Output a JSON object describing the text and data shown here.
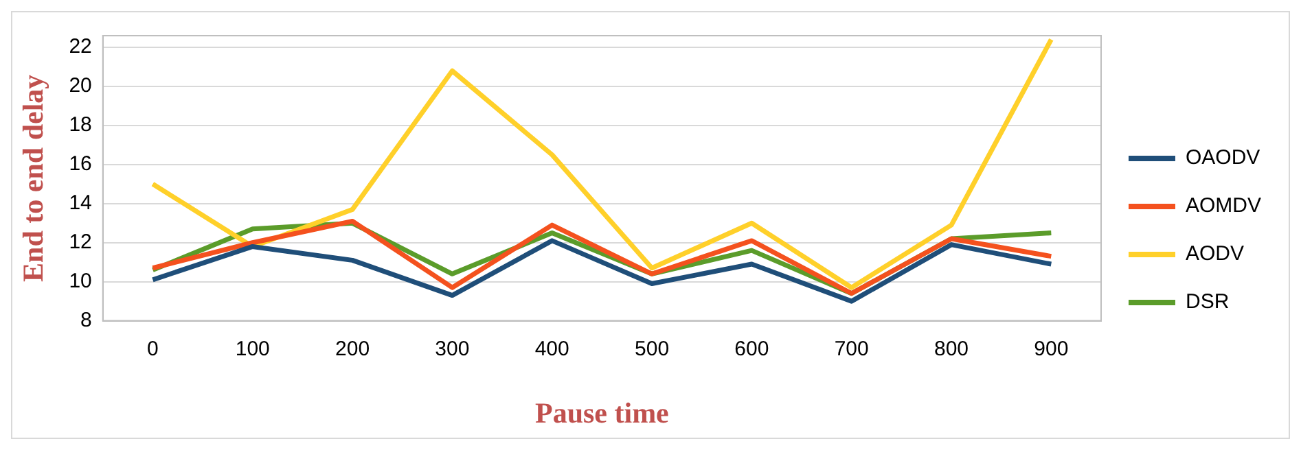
{
  "chart_data": {
    "type": "line",
    "xlabel": "Pause time",
    "ylabel": "End to end delay",
    "categories": [
      "0",
      "100",
      "200",
      "300",
      "400",
      "500",
      "600",
      "700",
      "800",
      "900"
    ],
    "ylim": [
      8,
      22.6
    ],
    "yticks": [
      8,
      10,
      12,
      14,
      16,
      18,
      20,
      22
    ],
    "grid": "y",
    "legend": "right",
    "marker": "none",
    "series": [
      {
        "name": "OAODV",
        "color": "#1f4e79",
        "values": [
          10.1,
          11.8,
          11.1,
          9.3,
          12.1,
          9.9,
          10.9,
          9.0,
          11.9,
          10.9
        ]
      },
      {
        "name": "AOMDV",
        "color": "#f4511e",
        "values": [
          10.7,
          12.0,
          13.1,
          9.7,
          12.9,
          10.4,
          12.1,
          9.4,
          12.2,
          11.3
        ]
      },
      {
        "name": "AODV",
        "color": "#ffd02a",
        "values": [
          15.0,
          11.8,
          13.7,
          20.8,
          16.5,
          10.7,
          13.0,
          9.7,
          12.9,
          22.4
        ]
      },
      {
        "name": "DSR",
        "color": "#5b9c2a",
        "values": [
          10.6,
          12.7,
          13.0,
          10.4,
          12.5,
          10.4,
          11.6,
          9.4,
          12.2,
          12.5
        ]
      }
    ]
  }
}
